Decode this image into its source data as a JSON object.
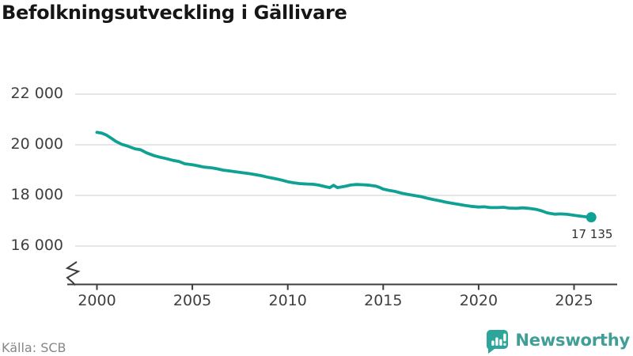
{
  "title": "Befolkningsutveckling i Gällivare",
  "source": "Källa: SCB",
  "branding": {
    "name": "Newsworthy",
    "icon": "newsworthy-speech-bubble-barchart-icon"
  },
  "colors": {
    "line": "#0fa294",
    "end_dot": "#0fa294",
    "gridline": "#e6e6e6",
    "axis": "#3d3d3d",
    "tick_text": "#3f3f3f",
    "title_text": "#161616",
    "source_text": "#878787",
    "brand_teal": "#3f9e95",
    "brand_icon_teal": "#2da59a"
  },
  "chart_data": {
    "type": "line",
    "title": "Befolkningsutveckling i Gällivare",
    "xlabel": "",
    "ylabel": "",
    "legend": "none",
    "grid": "horizontal",
    "axis_break": true,
    "xlim": [
      1998.5,
      2027.3
    ],
    "ylim": [
      16000,
      22000
    ],
    "x_ticks": [
      2000,
      2005,
      2010,
      2015,
      2020,
      2025
    ],
    "x_tick_labels": [
      "2000",
      "2005",
      "2010",
      "2015",
      "2020",
      "2025"
    ],
    "y_ticks": [
      22000,
      20000,
      18000,
      16000
    ],
    "y_tick_labels": [
      "22 000",
      "20 000",
      "18 000",
      "16 000"
    ],
    "end_value": 17135,
    "end_label": "17 135",
    "series": [
      {
        "name": "Befolkning i Gällivare",
        "color": "#0fa294",
        "points": [
          [
            2000.0,
            20490
          ],
          [
            2000.25,
            20460
          ],
          [
            2000.5,
            20380
          ],
          [
            2000.75,
            20260
          ],
          [
            2001.0,
            20130
          ],
          [
            2001.3,
            20020
          ],
          [
            2001.6,
            19950
          ],
          [
            2002.0,
            19840
          ],
          [
            2002.3,
            19800
          ],
          [
            2002.6,
            19680
          ],
          [
            2003.0,
            19570
          ],
          [
            2003.3,
            19510
          ],
          [
            2003.6,
            19460
          ],
          [
            2004.0,
            19380
          ],
          [
            2004.3,
            19340
          ],
          [
            2004.6,
            19250
          ],
          [
            2005.0,
            19210
          ],
          [
            2005.3,
            19170
          ],
          [
            2005.6,
            19120
          ],
          [
            2006.0,
            19090
          ],
          [
            2006.3,
            19050
          ],
          [
            2006.6,
            19000
          ],
          [
            2007.0,
            18960
          ],
          [
            2007.3,
            18930
          ],
          [
            2007.6,
            18900
          ],
          [
            2008.0,
            18860
          ],
          [
            2008.3,
            18820
          ],
          [
            2008.6,
            18780
          ],
          [
            2009.0,
            18710
          ],
          [
            2009.3,
            18670
          ],
          [
            2009.6,
            18620
          ],
          [
            2010.0,
            18540
          ],
          [
            2010.3,
            18500
          ],
          [
            2010.6,
            18470
          ],
          [
            2011.0,
            18450
          ],
          [
            2011.3,
            18440
          ],
          [
            2011.6,
            18410
          ],
          [
            2012.0,
            18340
          ],
          [
            2012.2,
            18310
          ],
          [
            2012.4,
            18400
          ],
          [
            2012.6,
            18310
          ],
          [
            2012.8,
            18330
          ],
          [
            2013.0,
            18360
          ],
          [
            2013.3,
            18410
          ],
          [
            2013.6,
            18430
          ],
          [
            2014.0,
            18420
          ],
          [
            2014.3,
            18400
          ],
          [
            2014.6,
            18370
          ],
          [
            2014.8,
            18320
          ],
          [
            2015.0,
            18250
          ],
          [
            2015.3,
            18200
          ],
          [
            2015.6,
            18160
          ],
          [
            2016.0,
            18080
          ],
          [
            2016.3,
            18040
          ],
          [
            2016.6,
            18000
          ],
          [
            2017.0,
            17950
          ],
          [
            2017.3,
            17890
          ],
          [
            2017.6,
            17840
          ],
          [
            2018.0,
            17780
          ],
          [
            2018.3,
            17730
          ],
          [
            2018.6,
            17690
          ],
          [
            2019.0,
            17640
          ],
          [
            2019.3,
            17600
          ],
          [
            2019.6,
            17570
          ],
          [
            2020.0,
            17540
          ],
          [
            2020.3,
            17550
          ],
          [
            2020.6,
            17520
          ],
          [
            2021.0,
            17520
          ],
          [
            2021.3,
            17530
          ],
          [
            2021.6,
            17500
          ],
          [
            2022.0,
            17490
          ],
          [
            2022.3,
            17510
          ],
          [
            2022.6,
            17490
          ],
          [
            2023.0,
            17450
          ],
          [
            2023.3,
            17390
          ],
          [
            2023.6,
            17310
          ],
          [
            2024.0,
            17260
          ],
          [
            2024.3,
            17270
          ],
          [
            2024.6,
            17255
          ],
          [
            2025.0,
            17215
          ],
          [
            2025.3,
            17185
          ],
          [
            2025.6,
            17155
          ],
          [
            2025.9,
            17135
          ]
        ]
      }
    ]
  }
}
